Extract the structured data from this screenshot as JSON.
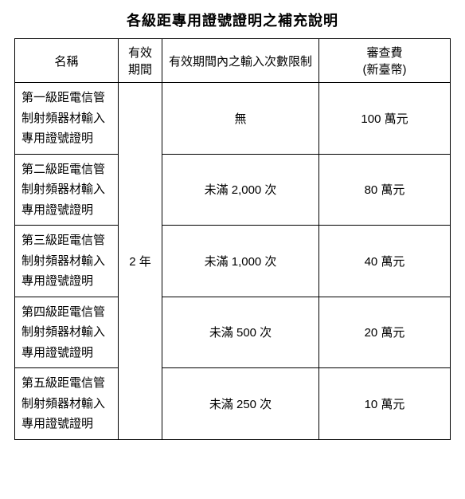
{
  "title": "各級距專用證號證明之補充說明",
  "headers": {
    "name": "名稱",
    "period": "有效期間",
    "limit": "有效期間內之輸入次數限制",
    "fee_line1": "審查費",
    "fee_line2": "(新臺幣)"
  },
  "period_value": "2 年",
  "rows": [
    {
      "name": "第一級距電信管制射頻器材輸入專用證號證明",
      "limit": "無",
      "fee": "100 萬元"
    },
    {
      "name": "第二級距電信管制射頻器材輸入專用證號證明",
      "limit": "未滿 2,000 次",
      "fee": "80 萬元"
    },
    {
      "name": "第三級距電信管制射頻器材輸入專用證號證明",
      "limit": "未滿 1,000 次",
      "fee": "40 萬元"
    },
    {
      "name": "第四級距電信管制射頻器材輸入專用證號證明",
      "limit": "未滿 500 次",
      "fee": "20 萬元"
    },
    {
      "name": "第五級距電信管制射頻器材輸入專用證號證明",
      "limit": "未滿 250 次",
      "fee": "10 萬元"
    }
  ]
}
